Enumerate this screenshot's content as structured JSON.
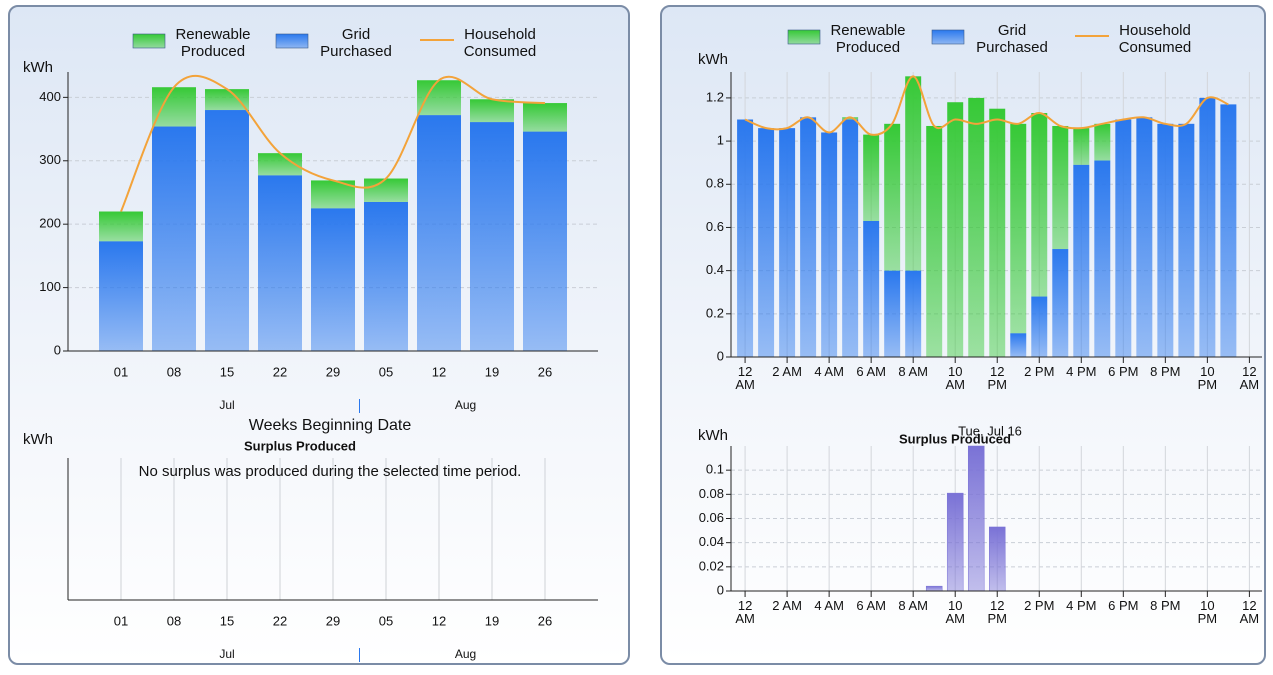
{
  "chart_data": [
    {
      "type": "bar",
      "stacked": true,
      "ylabel": "kWh",
      "xlabel": "Weeks Beginning Date",
      "categories": [
        "01",
        "08",
        "15",
        "22",
        "29",
        "05",
        "12",
        "19",
        "26"
      ],
      "x_groups": [
        "Jul",
        "Aug"
      ],
      "series": [
        {
          "name": "Renewable Produced",
          "color": "#36c936",
          "values": [
            47,
            62,
            33,
            35,
            44,
            37,
            55,
            36,
            45
          ]
        },
        {
          "name": "Grid Purchased",
          "color": "#2a78ee",
          "values": [
            173,
            354,
            380,
            277,
            225,
            235,
            372,
            361,
            346
          ]
        },
        {
          "name": "Household Consumed",
          "type": "line",
          "color": "#f3a33a",
          "values": [
            220,
            416,
            413,
            312,
            269,
            272,
            427,
            397,
            391
          ]
        }
      ],
      "ylim": [
        0,
        440
      ],
      "yticks": [
        0,
        100,
        200,
        300,
        400
      ],
      "grid": true,
      "xgrid": false
    },
    {
      "type": "bar",
      "title": "Surplus Produced",
      "ylabel": "kWh",
      "annotation": "No surplus was produced during the selected time period.",
      "categories": [
        "01",
        "08",
        "15",
        "22",
        "29",
        "05",
        "12",
        "19",
        "26"
      ],
      "x_groups": [
        "Jul",
        "Aug"
      ],
      "xgrid": true
    },
    {
      "type": "bar",
      "stacked": true,
      "ylabel": "kWh",
      "xlabel": "Tue, Jul 16",
      "x": [
        0,
        1,
        2,
        3,
        4,
        5,
        6,
        7,
        8,
        9,
        10,
        11,
        12,
        13,
        14,
        15,
        16,
        17,
        18,
        19,
        20,
        21,
        22,
        23
      ],
      "series": [
        {
          "name": "Renewable Produced",
          "color": "#36c936",
          "values": [
            0,
            0,
            0,
            0,
            0,
            0.01,
            0.4,
            0.68,
            0.9,
            1.07,
            1.18,
            1.2,
            1.15,
            0.97,
            0.85,
            0.57,
            0.17,
            0.17,
            0,
            0,
            0,
            0,
            0,
            0
          ]
        },
        {
          "name": "Grid Purchased",
          "color": "#2a78ee",
          "values": [
            1.1,
            1.06,
            1.06,
            1.11,
            1.04,
            1.1,
            0.63,
            0.4,
            0.4,
            0,
            0,
            0,
            0,
            0.11,
            0.28,
            0.5,
            0.89,
            0.91,
            1.1,
            1.11,
            1.08,
            1.08,
            1.2,
            1.17
          ]
        },
        {
          "name": "Household Consumed",
          "type": "line",
          "color": "#f3a33a",
          "values": [
            1.1,
            1.06,
            1.06,
            1.11,
            1.04,
            1.11,
            1.03,
            1.08,
            1.3,
            1.07,
            1.1,
            1.08,
            1.1,
            1.08,
            1.13,
            1.07,
            1.06,
            1.08,
            1.1,
            1.11,
            1.08,
            1.08,
            1.2,
            1.17
          ]
        }
      ],
      "xlim": [
        -0.67,
        24.6
      ],
      "xticks": [
        {
          "value": 0,
          "label": "12 AM"
        },
        {
          "value": 2,
          "label": "2 AM"
        },
        {
          "value": 4,
          "label": "4 AM"
        },
        {
          "value": 6,
          "label": "6 AM"
        },
        {
          "value": 8,
          "label": "8 AM"
        },
        {
          "value": 10,
          "label": "10 AM"
        },
        {
          "value": 12,
          "label": "12 PM"
        },
        {
          "value": 14,
          "label": "2 PM"
        },
        {
          "value": 16,
          "label": "4 PM"
        },
        {
          "value": 18,
          "label": "6 PM"
        },
        {
          "value": 20,
          "label": "8 PM"
        },
        {
          "value": 22,
          "label": "10 PM"
        },
        {
          "value": 24,
          "label": "12 AM"
        }
      ],
      "ylim": [
        0,
        1.32
      ],
      "yticks": [
        0,
        0.2,
        0.4,
        0.6,
        0.8,
        1,
        1.2
      ],
      "grid": true,
      "xgrid": true
    },
    {
      "type": "bar",
      "title": "Surplus Produced",
      "ylabel": "kWh",
      "x": [
        0,
        1,
        2,
        3,
        4,
        5,
        6,
        7,
        8,
        9,
        10,
        11,
        12,
        13,
        14,
        15,
        16,
        17,
        18,
        19,
        20,
        21,
        22,
        23
      ],
      "values": [
        0,
        0,
        0,
        0,
        0,
        0,
        0,
        0,
        0,
        0.004,
        0.081,
        0.12,
        0.053,
        0,
        0,
        0,
        0,
        0,
        0,
        0,
        0,
        0,
        0,
        0
      ],
      "color": "#7a72d6",
      "xlim": [
        -0.67,
        24.6
      ],
      "xticks": [
        {
          "value": 0,
          "label": "12 AM"
        },
        {
          "value": 2,
          "label": "2 AM"
        },
        {
          "value": 4,
          "label": "4 AM"
        },
        {
          "value": 6,
          "label": "6 AM"
        },
        {
          "value": 8,
          "label": "8 AM"
        },
        {
          "value": 10,
          "label": "10 AM"
        },
        {
          "value": 12,
          "label": "12 PM"
        },
        {
          "value": 14,
          "label": "2 PM"
        },
        {
          "value": 16,
          "label": "4 PM"
        },
        {
          "value": 18,
          "label": "6 PM"
        },
        {
          "value": 20,
          "label": "8 PM"
        },
        {
          "value": 22,
          "label": "10 PM"
        },
        {
          "value": 24,
          "label": "12 AM"
        }
      ],
      "ylim": [
        0,
        0.12
      ],
      "yticks": [
        0,
        0.02,
        0.04,
        0.06,
        0.08,
        0.1
      ],
      "grid": true,
      "xgrid": true
    }
  ]
}
